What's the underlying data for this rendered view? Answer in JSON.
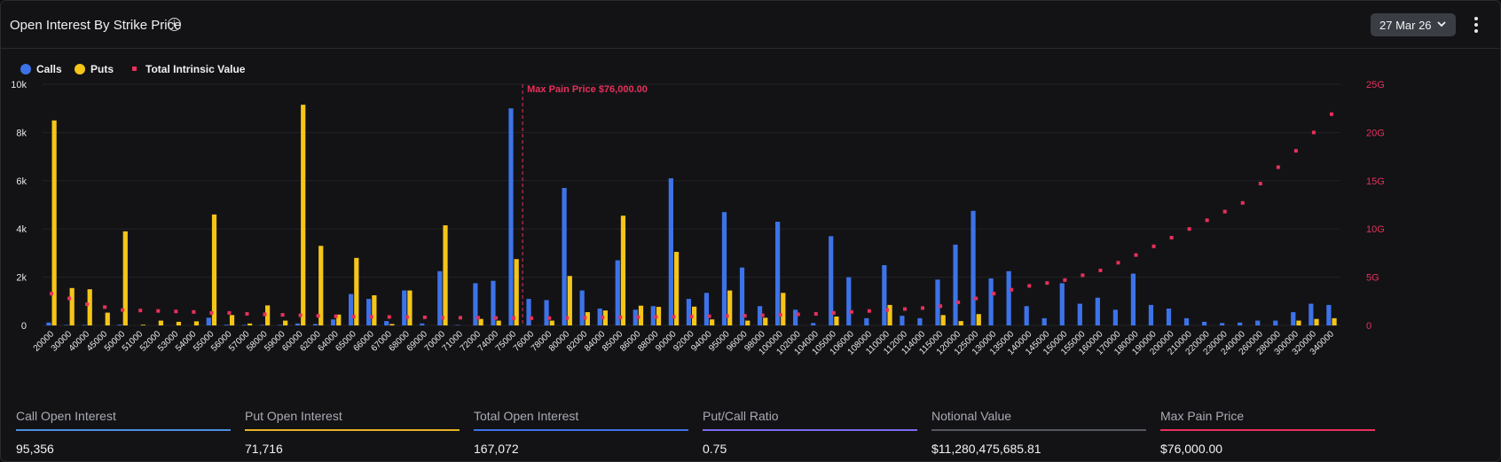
{
  "header": {
    "title": "Open Interest By Strike Price",
    "date_select": "27 Mar 26"
  },
  "legend": [
    {
      "label": "Calls",
      "color": "#3d73e8",
      "marker": "circle"
    },
    {
      "label": "Puts",
      "color": "#f5c518",
      "marker": "circle"
    },
    {
      "label": "Total Intrinsic Value",
      "color": "#e8305a",
      "marker": "square"
    }
  ],
  "chart_data": {
    "type": "bar",
    "categories": [
      "20000",
      "30000",
      "40000",
      "45000",
      "50000",
      "51000",
      "52000",
      "53000",
      "54000",
      "55000",
      "56000",
      "57000",
      "58000",
      "59000",
      "60000",
      "62000",
      "64000",
      "65000",
      "66000",
      "67000",
      "68000",
      "69000",
      "70000",
      "71000",
      "72000",
      "74000",
      "75000",
      "76000",
      "78000",
      "80000",
      "82000",
      "84000",
      "85000",
      "86000",
      "88000",
      "90000",
      "92000",
      "94000",
      "95000",
      "96000",
      "98000",
      "100000",
      "102000",
      "104000",
      "105000",
      "106000",
      "108000",
      "110000",
      "112000",
      "114000",
      "115000",
      "120000",
      "125000",
      "130000",
      "135000",
      "140000",
      "145000",
      "150000",
      "155000",
      "160000",
      "170000",
      "180000",
      "190000",
      "200000",
      "210000",
      "220000",
      "230000",
      "240000",
      "260000",
      "280000",
      "300000",
      "320000",
      "340000"
    ],
    "series": [
      {
        "name": "Calls",
        "color": "#3d73e8",
        "axis": "left",
        "values": [
          120,
          20,
          20,
          0,
          30,
          0,
          0,
          0,
          0,
          320,
          30,
          20,
          20,
          20,
          80,
          60,
          250,
          1300,
          1100,
          180,
          1450,
          80,
          2250,
          20,
          1750,
          1850,
          9000,
          1100,
          1050,
          5700,
          1450,
          700,
          2700,
          650,
          800,
          6100,
          1100,
          1350,
          4700,
          2400,
          800,
          4300,
          650,
          100,
          3700,
          2000,
          300,
          2500,
          400,
          300,
          1900,
          3350,
          4750,
          1950,
          2250,
          800,
          300,
          1750,
          900,
          1150,
          650,
          2150,
          850,
          700,
          300,
          150,
          100,
          120,
          200,
          200,
          550,
          900,
          850
        ]
      },
      {
        "name": "Puts",
        "color": "#f5c518",
        "axis": "left",
        "values": [
          8500,
          1550,
          1500,
          530,
          3900,
          30,
          200,
          150,
          170,
          4600,
          430,
          80,
          830,
          200,
          9150,
          3300,
          450,
          2800,
          1250,
          60,
          1450,
          0,
          4150,
          0,
          270,
          200,
          2750,
          0,
          200,
          2050,
          550,
          620,
          4550,
          820,
          770,
          3050,
          780,
          250,
          1450,
          200,
          320,
          1350,
          0,
          0,
          370,
          0,
          0,
          850,
          0,
          0,
          430,
          180,
          470,
          0,
          0,
          0,
          0,
          0,
          0,
          0,
          0,
          0,
          0,
          0,
          0,
          0,
          0,
          0,
          0,
          0,
          200,
          270,
          300
        ]
      },
      {
        "name": "Total Intrinsic Value",
        "color": "#e8305a",
        "axis": "right",
        "unit": "G",
        "values": [
          3.3,
          2.8,
          2.2,
          1.9,
          1.6,
          1.55,
          1.5,
          1.45,
          1.4,
          1.3,
          1.3,
          1.2,
          1.15,
          1.1,
          1.05,
          1.0,
          0.95,
          0.92,
          0.9,
          0.88,
          0.86,
          0.84,
          0.8,
          0.8,
          0.8,
          0.78,
          0.76,
          0.75,
          0.76,
          0.78,
          0.8,
          0.82,
          0.84,
          0.86,
          0.88,
          0.9,
          0.92,
          0.95,
          0.98,
          1.0,
          1.05,
          1.1,
          1.15,
          1.2,
          1.3,
          1.4,
          1.5,
          1.6,
          1.7,
          1.8,
          2.0,
          2.4,
          2.8,
          3.3,
          3.7,
          4.1,
          4.4,
          4.7,
          5.2,
          5.7,
          6.5,
          7.3,
          8.2,
          9.1,
          10.0,
          10.9,
          11.8,
          12.7,
          14.7,
          16.4,
          18.1,
          20.0,
          21.9
        ]
      }
    ],
    "y_left": {
      "min": 0,
      "max": 10000,
      "ticks": [
        "0",
        "2k",
        "4k",
        "6k",
        "8k",
        "10k"
      ]
    },
    "y_right": {
      "min": 0,
      "max": 25,
      "ticks": [
        "0",
        "5G",
        "10G",
        "15G",
        "20G",
        "25G"
      ]
    },
    "annotation": {
      "category": "76000",
      "label": "Max Pain Price $76,000.00",
      "color": "#e8305a"
    },
    "grid": true,
    "legend_position": "top-left"
  },
  "stats": [
    {
      "label": "Call Open Interest",
      "value": "95,356",
      "color": "#4a8fe0"
    },
    {
      "label": "Put Open Interest",
      "value": "71,716",
      "color": "#e8b424"
    },
    {
      "label": "Total Open Interest",
      "value": "167,072",
      "color": "#3d73e8"
    },
    {
      "label": "Put/Call Ratio",
      "value": "0.75",
      "color": "#7a6cf0"
    },
    {
      "label": "Notional Value",
      "value": "$11,280,475,685.81",
      "color": "#55595f"
    },
    {
      "label": "Max Pain Price",
      "value": "$76,000.00",
      "color": "#e8305a"
    }
  ]
}
